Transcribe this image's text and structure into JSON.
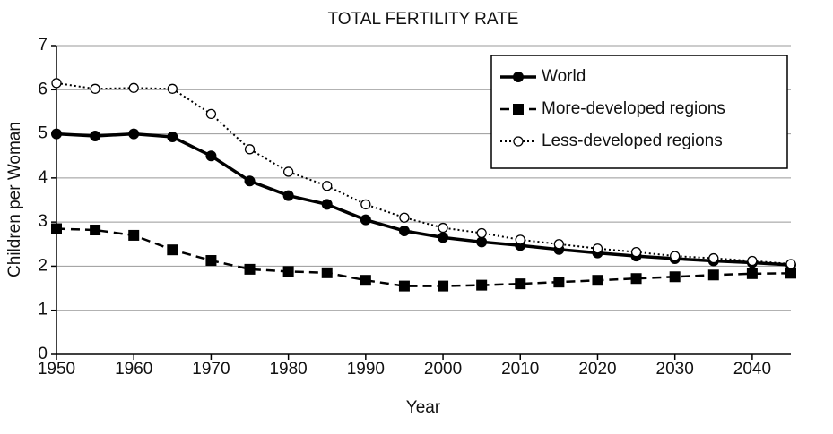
{
  "chart_data": {
    "type": "line",
    "title": "TOTAL FERTILITY RATE",
    "x_label": "Year",
    "y_label": "Children per Woman",
    "x": [
      1950,
      1955,
      1960,
      1965,
      1970,
      1975,
      1980,
      1985,
      1990,
      1995,
      2000,
      2005,
      2010,
      2015,
      2020,
      2025,
      2030,
      2035,
      2040,
      2045
    ],
    "series": [
      {
        "name": "World",
        "color": "#000000",
        "line": "solid",
        "marker": "circle",
        "values": [
          5.0,
          4.95,
          5.0,
          4.93,
          4.5,
          3.93,
          3.6,
          3.4,
          3.05,
          2.8,
          2.65,
          2.55,
          2.47,
          2.38,
          2.3,
          2.23,
          2.17,
          2.12,
          2.08,
          2.03
        ]
      },
      {
        "name": "More-developed regions",
        "color": "#000000",
        "line": "dashed",
        "marker": "square",
        "values": [
          2.85,
          2.82,
          2.7,
          2.37,
          2.13,
          1.93,
          1.88,
          1.85,
          1.68,
          1.55,
          1.55,
          1.57,
          1.6,
          1.64,
          1.68,
          1.72,
          1.76,
          1.8,
          1.83,
          1.84
        ]
      },
      {
        "name": "Less-developed regions",
        "color": "#000000",
        "line": "dotted",
        "marker": "open-circle",
        "values": [
          6.15,
          6.02,
          6.04,
          6.02,
          5.45,
          4.65,
          4.14,
          3.82,
          3.4,
          3.1,
          2.87,
          2.75,
          2.6,
          2.5,
          2.4,
          2.32,
          2.23,
          2.18,
          2.12,
          2.05
        ]
      }
    ],
    "xlim": [
      1950,
      2045
    ],
    "xticks": [
      1950,
      1960,
      1970,
      1980,
      1990,
      2000,
      2010,
      2020,
      2030,
      2040
    ],
    "ylim": [
      0,
      7
    ],
    "yticks": [
      0,
      1,
      2,
      3,
      4,
      5,
      6,
      7
    ],
    "grid": true,
    "legend": "upper right"
  }
}
